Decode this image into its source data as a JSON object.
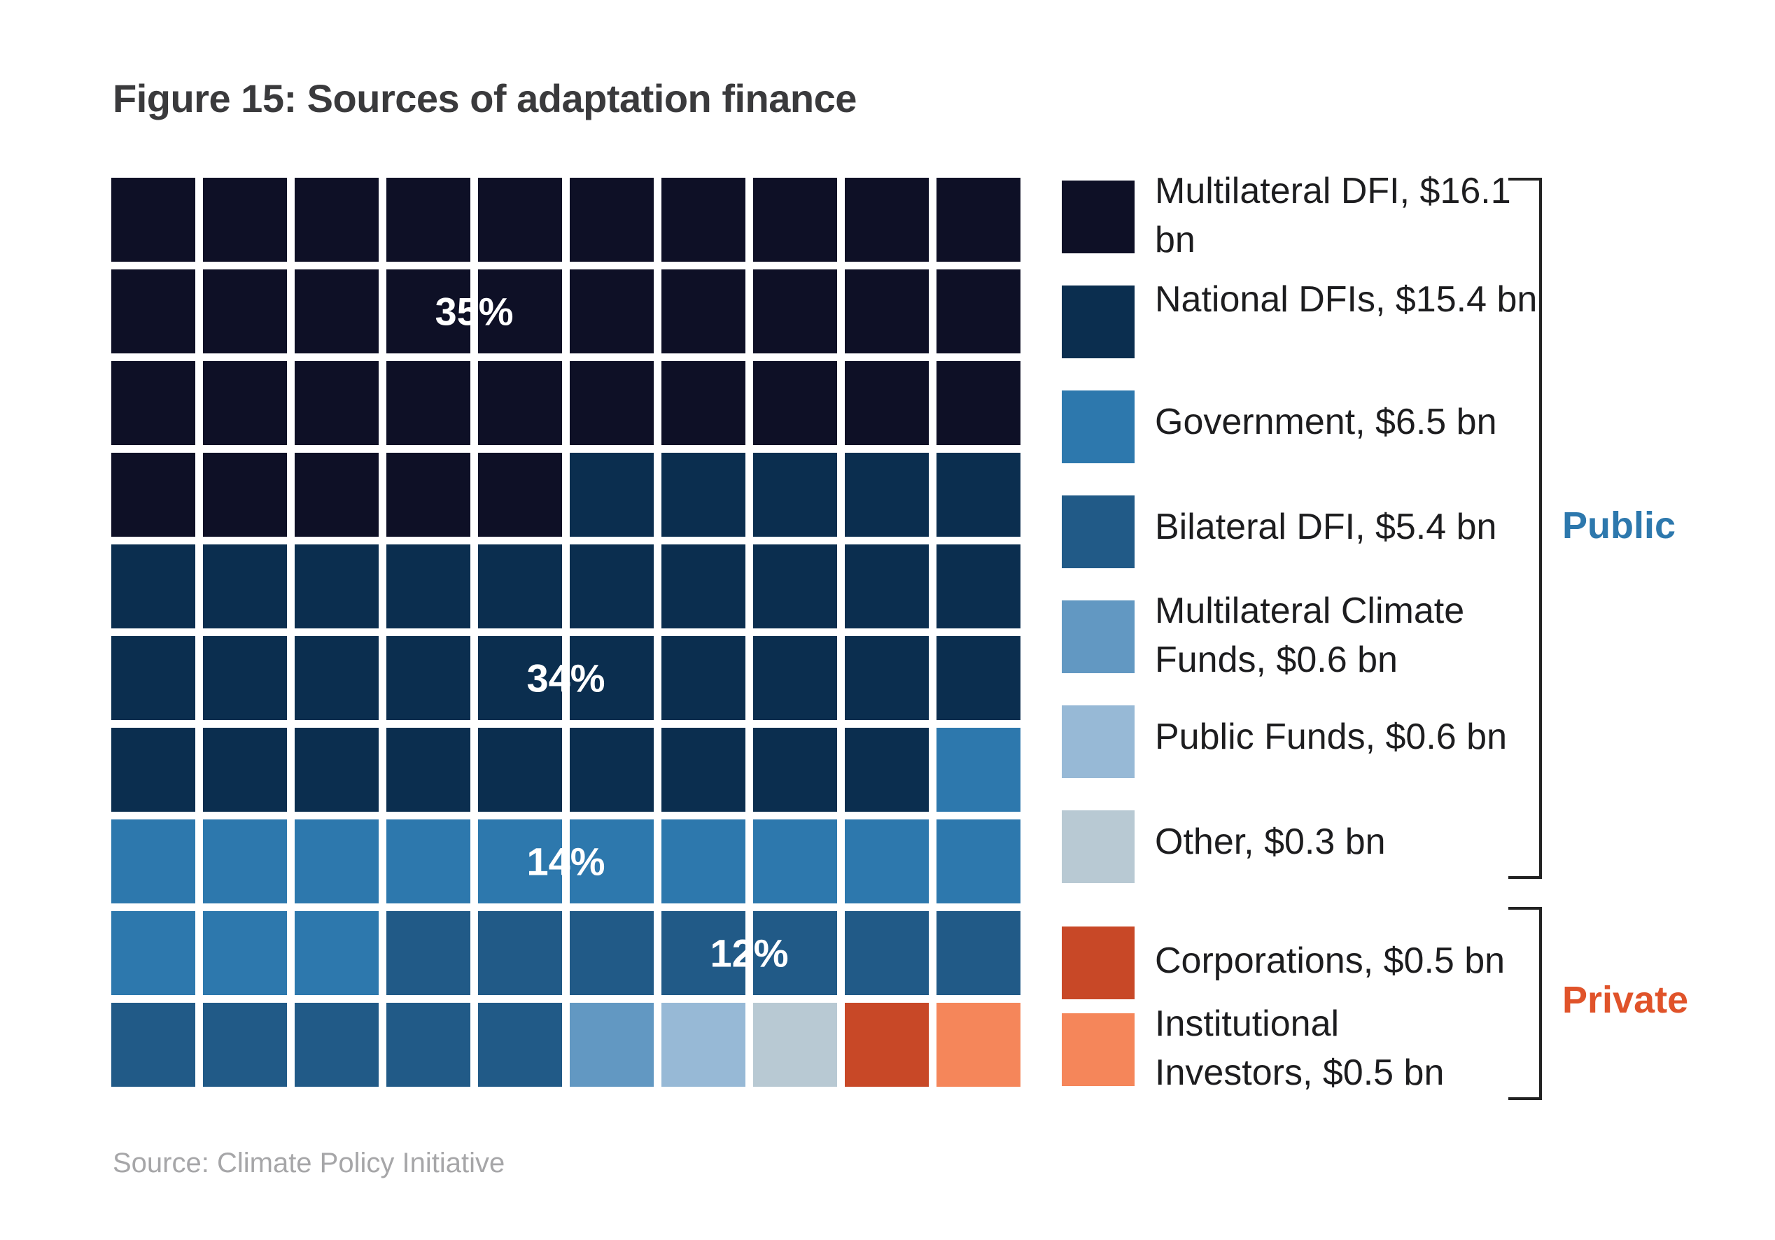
{
  "title": "Figure 15: Sources of adaptation finance",
  "source": "Source: Climate Policy Initiative",
  "chart_data": {
    "type": "waffle",
    "grid": {
      "rows": 10,
      "cols": 10
    },
    "series": [
      {
        "name": "Multilateral DFI, $16.1 bn",
        "value_bn": 16.1,
        "cells": 35,
        "color": "#0e1026"
      },
      {
        "name": "National DFIs, $15.4 bn",
        "value_bn": 15.4,
        "cells": 34,
        "color": "#0b2e4f"
      },
      {
        "name": "Government, $6.5 bn",
        "value_bn": 6.5,
        "cells": 14,
        "color": "#2d78ad"
      },
      {
        "name": "Bilateral DFI, $5.4 bn",
        "value_bn": 5.4,
        "cells": 12,
        "color": "#215a87"
      },
      {
        "name": "Multilateral Climate\nFunds,  $0.6 bn",
        "value_bn": 0.6,
        "cells": 1,
        "color": "#6298c2"
      },
      {
        "name": "Public Funds, $0.6 bn",
        "value_bn": 0.6,
        "cells": 1,
        "color": "#97b9d6"
      },
      {
        "name": "Other, $0.3 bn",
        "value_bn": 0.3,
        "cells": 1,
        "color": "#b8c9d3"
      },
      {
        "name": "Corporations, $0.5 bn",
        "value_bn": 0.5,
        "cells": 1,
        "color": "#c84827"
      },
      {
        "name": "Institutional\nInvestors, $0.5 bn",
        "value_bn": 0.5,
        "cells": 1,
        "color": "#f5865a"
      }
    ],
    "annotations": [
      "35%",
      "34%",
      "14%",
      "12%"
    ],
    "groups": [
      {
        "name": "Public",
        "color": "#2d78ad"
      },
      {
        "name": "Private",
        "color": "#e0532a"
      }
    ]
  }
}
